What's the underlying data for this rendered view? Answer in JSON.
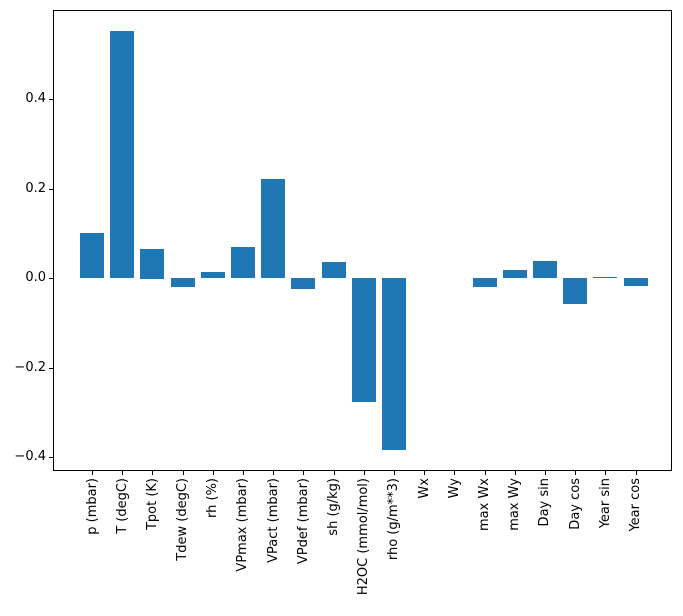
{
  "chart_data": {
    "type": "bar",
    "title": "",
    "xlabel": "",
    "ylabel": "",
    "categories": [
      "p (mbar)",
      "T (degC)",
      "Tpot (K)",
      "Tdew (degC)",
      "rh (%)",
      "VPmax (mbar)",
      "VPact (mbar)",
      "VPdef (mbar)",
      "sh (g/kg)",
      "H2OC (mmol/mol)",
      "rho (g/m**3)",
      "Wx",
      "Wy",
      "max Wx",
      "max Wy",
      "Day sin",
      "Day cos",
      "Year sin",
      "Year cos"
    ],
    "values": [
      0.1,
      0.552,
      0.066,
      -0.02,
      0.013,
      0.069,
      0.221,
      -0.024,
      0.035,
      -0.277,
      -0.384,
      0.0,
      0.0,
      -0.021,
      0.018,
      0.038,
      -0.058,
      0.002,
      -0.018
    ],
    "ylim": [
      -0.431,
      0.599
    ],
    "yticks": [
      {
        "value": 0.4,
        "label": "0.4"
      },
      {
        "value": 0.2,
        "label": "0.2"
      },
      {
        "value": 0.0,
        "label": "0.0"
      },
      {
        "value": -0.2,
        "label": "−0.2"
      },
      {
        "value": -0.4,
        "label": "−0.4"
      }
    ],
    "grid": false,
    "legend": "none",
    "bar_width_fraction": 0.8,
    "bar_color": "#1f77b4",
    "axis_color": "#000000",
    "background": "#ffffff"
  }
}
